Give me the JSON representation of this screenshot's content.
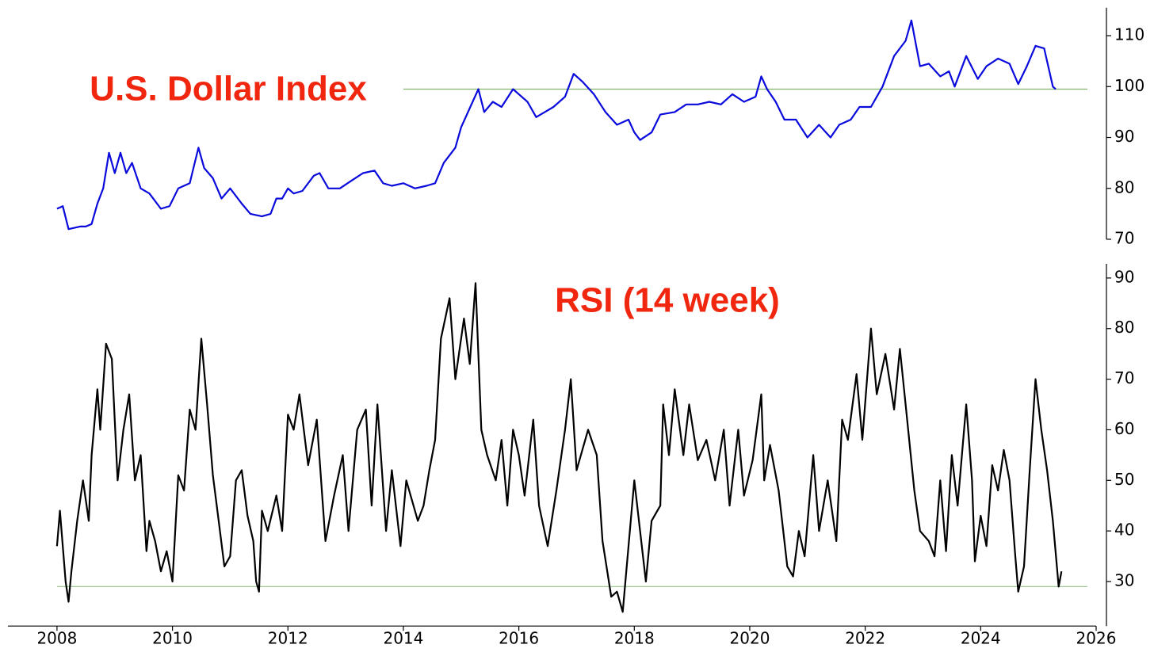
{
  "chart_data": [
    {
      "type": "line",
      "annotation": "U.S. Dollar Index",
      "color": "#0a0adc",
      "xlim": [
        2007.15,
        2026
      ],
      "ylim": [
        70,
        115.5
      ],
      "yticks": [
        70,
        80,
        90,
        100,
        110
      ],
      "reference_line": {
        "value": 99.5,
        "x": [
          2014,
          2025.85
        ],
        "color": "#7fb26a"
      },
      "x": [
        2008.0,
        2008.1,
        2008.2,
        2008.4,
        2008.5,
        2008.6,
        2008.7,
        2008.8,
        2008.9,
        2009.0,
        2009.1,
        2009.2,
        2009.3,
        2009.45,
        2009.6,
        2009.8,
        2009.95,
        2010.1,
        2010.3,
        2010.45,
        2010.55,
        2010.7,
        2010.85,
        2011.0,
        2011.2,
        2011.35,
        2011.55,
        2011.7,
        2011.8,
        2011.9,
        2012.0,
        2012.1,
        2012.25,
        2012.45,
        2012.55,
        2012.7,
        2012.9,
        2013.1,
        2013.3,
        2013.5,
        2013.65,
        2013.8,
        2014.0,
        2014.2,
        2014.4,
        2014.55,
        2014.7,
        2014.9,
        2015.0,
        2015.2,
        2015.3,
        2015.4,
        2015.55,
        2015.7,
        2015.9,
        2016.0,
        2016.15,
        2016.3,
        2016.45,
        2016.6,
        2016.8,
        2016.95,
        2017.1,
        2017.3,
        2017.5,
        2017.7,
        2017.9,
        2018.0,
        2018.1,
        2018.3,
        2018.45,
        2018.7,
        2018.9,
        2019.1,
        2019.3,
        2019.5,
        2019.7,
        2019.9,
        2020.1,
        2020.2,
        2020.3,
        2020.45,
        2020.6,
        2020.8,
        2021.0,
        2021.2,
        2021.4,
        2021.55,
        2021.75,
        2021.9,
        2022.1,
        2022.3,
        2022.5,
        2022.7,
        2022.8,
        2022.95,
        2023.1,
        2023.3,
        2023.45,
        2023.55,
        2023.75,
        2023.95,
        2024.1,
        2024.3,
        2024.5,
        2024.65,
        2024.8,
        2024.95,
        2025.1,
        2025.25,
        2025.3
      ],
      "values": [
        76,
        76.5,
        72,
        72.5,
        72.5,
        73,
        77,
        80,
        87,
        83,
        87,
        83,
        85,
        80,
        79,
        76,
        76.5,
        80,
        81,
        88,
        84,
        82,
        78,
        80,
        77,
        75,
        74.5,
        75,
        78,
        78,
        80,
        79,
        79.5,
        82.5,
        83,
        80,
        80,
        81.5,
        83,
        83.5,
        81,
        80.5,
        81,
        80,
        80.5,
        81,
        85,
        88,
        92,
        97,
        99.5,
        95,
        97,
        96,
        99.5,
        98.5,
        97,
        94,
        95,
        96,
        98,
        102.5,
        101,
        98.5,
        95,
        92.5,
        93.5,
        91,
        89.5,
        91,
        94.5,
        95,
        96.5,
        96.5,
        97,
        96.5,
        98.5,
        97,
        98,
        102,
        99.5,
        97,
        93.5,
        93.5,
        90,
        92.5,
        90,
        92.5,
        93.5,
        96,
        96,
        100,
        106,
        109,
        113,
        104,
        104.5,
        102,
        103,
        100,
        106,
        101.5,
        104,
        105.5,
        104.5,
        100.5,
        104,
        108,
        107.5,
        100,
        99.5
      ]
    },
    {
      "type": "line",
      "annotation": "RSI (14 week)",
      "color": "#000000",
      "xlim": [
        2007.15,
        2026
      ],
      "xticks": [
        2008,
        2010,
        2012,
        2014,
        2016,
        2018,
        2020,
        2022,
        2024,
        2026
      ],
      "ylim": [
        21.2,
        92.8
      ],
      "yticks": [
        30,
        40,
        50,
        60,
        70,
        80,
        90
      ],
      "reference_line": {
        "value": 29,
        "x": [
          2008,
          2025.85
        ],
        "color": "#9fcc96"
      },
      "x": [
        2008.0,
        2008.05,
        2008.15,
        2008.2,
        2008.25,
        2008.35,
        2008.45,
        2008.55,
        2008.6,
        2008.7,
        2008.75,
        2008.85,
        2008.95,
        2009.05,
        2009.15,
        2009.25,
        2009.35,
        2009.45,
        2009.55,
        2009.6,
        2009.7,
        2009.8,
        2009.9,
        2010.0,
        2010.1,
        2010.2,
        2010.3,
        2010.4,
        2010.5,
        2010.6,
        2010.7,
        2010.8,
        2010.9,
        2011.0,
        2011.1,
        2011.2,
        2011.3,
        2011.4,
        2011.45,
        2011.5,
        2011.55,
        2011.65,
        2011.8,
        2011.9,
        2012.0,
        2012.1,
        2012.2,
        2012.35,
        2012.5,
        2012.65,
        2012.8,
        2012.95,
        2013.05,
        2013.2,
        2013.35,
        2013.45,
        2013.55,
        2013.7,
        2013.8,
        2013.95,
        2014.05,
        2014.25,
        2014.35,
        2014.45,
        2014.55,
        2014.65,
        2014.8,
        2014.9,
        2015.05,
        2015.15,
        2015.25,
        2015.35,
        2015.45,
        2015.6,
        2015.7,
        2015.8,
        2015.9,
        2016.0,
        2016.1,
        2016.25,
        2016.35,
        2016.5,
        2016.65,
        2016.8,
        2016.9,
        2017.0,
        2017.2,
        2017.35,
        2017.45,
        2017.6,
        2017.7,
        2017.8,
        2018.0,
        2018.1,
        2018.2,
        2018.3,
        2018.45,
        2018.5,
        2018.6,
        2018.7,
        2018.85,
        2018.95,
        2019.1,
        2019.25,
        2019.4,
        2019.55,
        2019.65,
        2019.8,
        2019.9,
        2020.05,
        2020.2,
        2020.25,
        2020.35,
        2020.5,
        2020.65,
        2020.75,
        2020.85,
        2020.95,
        2021.1,
        2021.2,
        2021.35,
        2021.5,
        2021.6,
        2021.7,
        2021.85,
        2021.95,
        2022.1,
        2022.2,
        2022.35,
        2022.5,
        2022.6,
        2022.7,
        2022.85,
        2022.95,
        2023.1,
        2023.2,
        2023.3,
        2023.4,
        2023.5,
        2023.6,
        2023.75,
        2023.85,
        2023.9,
        2024.0,
        2024.1,
        2024.2,
        2024.3,
        2024.4,
        2024.5,
        2024.6,
        2024.65,
        2024.75,
        2024.85,
        2024.95,
        2025.05,
        2025.15,
        2025.25,
        2025.35,
        2025.4
      ],
      "values": [
        37,
        44,
        30,
        26,
        32,
        42,
        50,
        42,
        55,
        68,
        60,
        77,
        74,
        50,
        60,
        67,
        50,
        55,
        36,
        42,
        38,
        32,
        36,
        30,
        51,
        48,
        64,
        60,
        78,
        65,
        51,
        42,
        33,
        35,
        50,
        52,
        43,
        38,
        30,
        28,
        44,
        40,
        47,
        40,
        63,
        60,
        67,
        53,
        62,
        38,
        47,
        55,
        40,
        60,
        64,
        45,
        65,
        40,
        52,
        37,
        50,
        42,
        45,
        52,
        58,
        78,
        86,
        70,
        82,
        73,
        89,
        60,
        55,
        50,
        58,
        45,
        60,
        55,
        47,
        62,
        45,
        37,
        48,
        60,
        70,
        52,
        60,
        55,
        38,
        27,
        28,
        24,
        50,
        40,
        30,
        42,
        45,
        65,
        55,
        68,
        55,
        65,
        54,
        58,
        50,
        60,
        45,
        60,
        47,
        54,
        67,
        50,
        57,
        48,
        33,
        31,
        40,
        35,
        55,
        40,
        50,
        38,
        62,
        58,
        71,
        58,
        80,
        67,
        75,
        64,
        76,
        65,
        48,
        40,
        38,
        35,
        50,
        36,
        55,
        45,
        65,
        50,
        34,
        43,
        37,
        53,
        48,
        56,
        50,
        35,
        28,
        33,
        52,
        70,
        60,
        52,
        42,
        29,
        32
      ]
    }
  ]
}
